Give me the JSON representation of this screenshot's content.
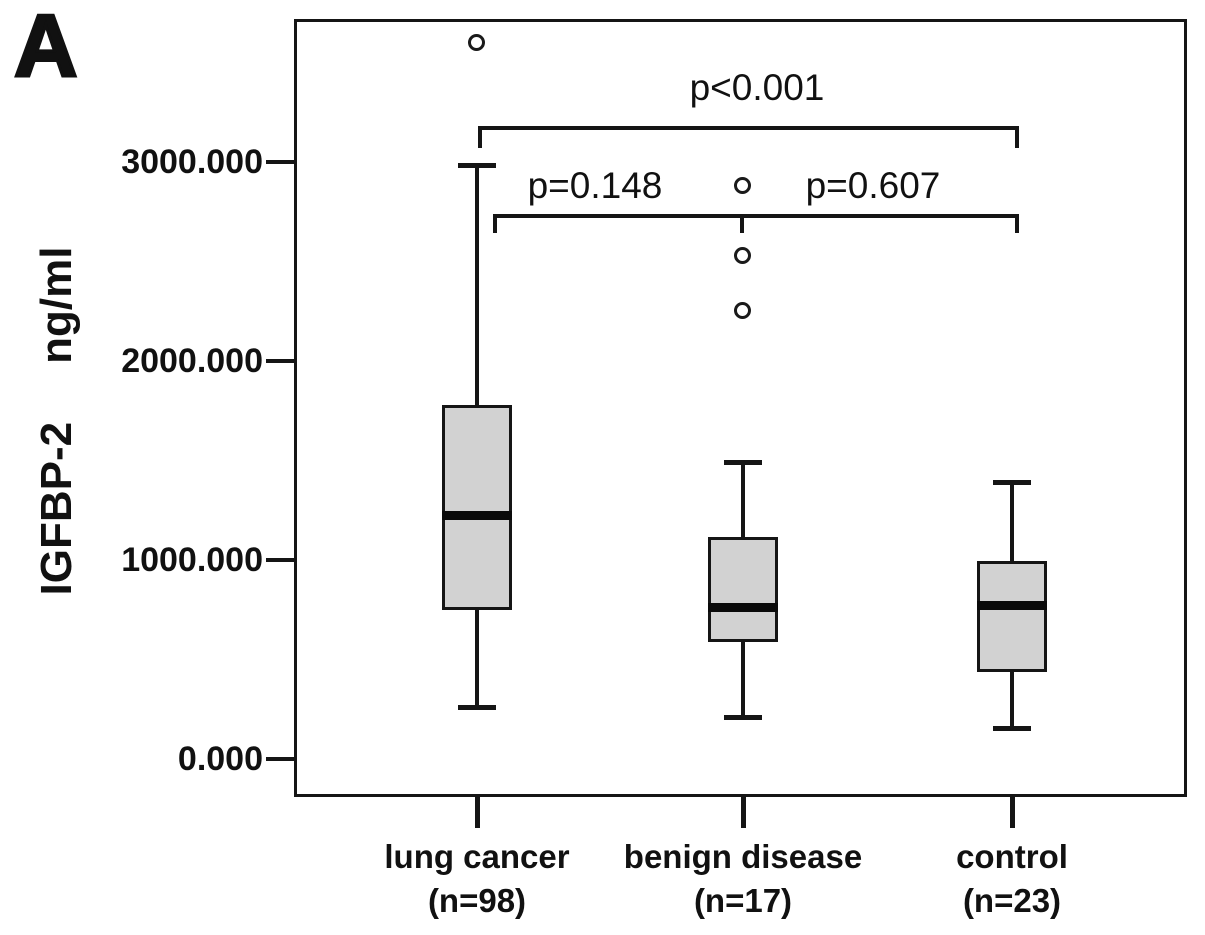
{
  "chart_data": {
    "type": "box",
    "panel_label": "A",
    "ylabel": "IGFBP-2",
    "yunit": "ng/ml",
    "ylim": [
      0,
      3600
    ],
    "grid": false,
    "yticks": [
      {
        "label": "3000.000",
        "value": 3000
      },
      {
        "label": "2000.000",
        "value": 2000
      },
      {
        "label": "1000.000",
        "value": 1000
      },
      {
        "label": "0.000",
        "value": 0
      }
    ],
    "categories": [
      {
        "label": "lung cancer",
        "sublabel": "(n=98)"
      },
      {
        "label": "benign disease",
        "sublabel": "(n=17)"
      },
      {
        "label": "control",
        "sublabel": "(n=23)"
      }
    ],
    "series": [
      {
        "name": "lung cancer",
        "n": 98,
        "whisker_low": 260,
        "q1": 750,
        "median": 1225,
        "q3": 1780,
        "whisker_high": 2985,
        "outliers": [
          3600
        ]
      },
      {
        "name": "benign disease",
        "n": 17,
        "whisker_low": 210,
        "q1": 590,
        "median": 765,
        "q3": 1115,
        "whisker_high": 1490,
        "outliers": [
          2880,
          2530,
          2250
        ]
      },
      {
        "name": "control",
        "n": 23,
        "whisker_low": 155,
        "q1": 435,
        "median": 775,
        "q3": 995,
        "whisker_high": 1390,
        "outliers": []
      }
    ],
    "annotations": [
      {
        "label": "p<0.001",
        "comparison": "lung cancer vs control"
      },
      {
        "label": "p=0.148",
        "comparison": "lung cancer vs benign disease"
      },
      {
        "label": "p=0.607",
        "comparison": "benign disease vs control"
      }
    ],
    "colors": {
      "box_fill": "#d2d2d2",
      "line": "#151515",
      "background": "#ffffff"
    }
  }
}
